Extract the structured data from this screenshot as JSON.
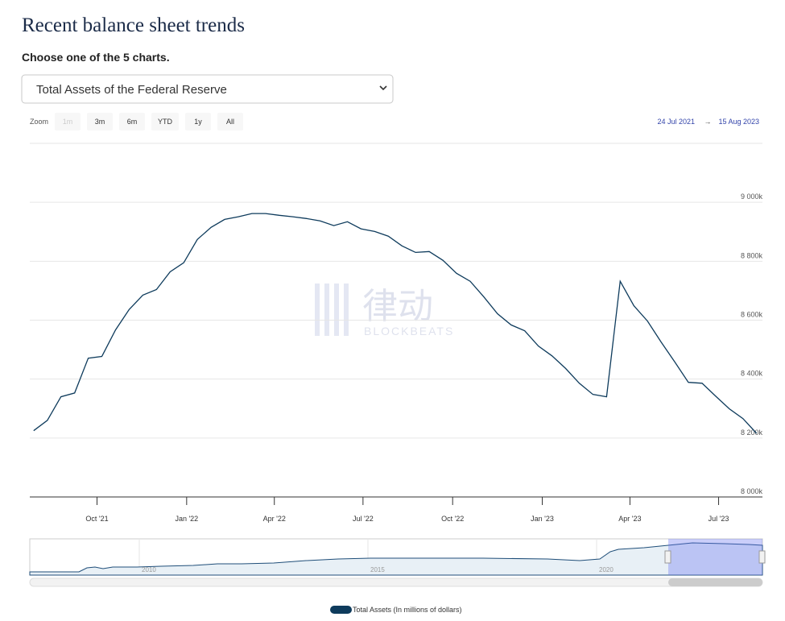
{
  "page": {
    "title": "Recent balance sheet trends",
    "subtitle": "Choose one of the 5 charts.",
    "select": "Total Assets of the Federal Reserve",
    "zoom_label": "Zoom",
    "zoom_buttons": [
      "1m",
      "3m",
      "6m",
      "YTD",
      "1y",
      "All"
    ],
    "range_from": "24 Jul 2021",
    "range_arrow": "→",
    "range_to": "15 Aug 2023",
    "navigator_years": [
      "2010",
      "2015",
      "2020"
    ],
    "watermark": [
      "律动",
      "BLOCKBEATS"
    ]
  },
  "chart_data": {
    "type": "line",
    "x": [
      "2021-07-28",
      "2021-08-11",
      "2021-08-25",
      "2021-09-08",
      "2021-09-22",
      "2021-10-06",
      "2021-10-20",
      "2021-11-03",
      "2021-11-17",
      "2021-12-01",
      "2021-12-15",
      "2021-12-29",
      "2022-01-12",
      "2022-01-26",
      "2022-02-09",
      "2022-02-23",
      "2022-03-09",
      "2022-03-23",
      "2022-04-06",
      "2022-04-20",
      "2022-05-04",
      "2022-05-18",
      "2022-06-01",
      "2022-06-15",
      "2022-06-29",
      "2022-07-13",
      "2022-07-27",
      "2022-08-10",
      "2022-08-24",
      "2022-09-07",
      "2022-09-21",
      "2022-10-05",
      "2022-10-19",
      "2022-11-02",
      "2022-11-16",
      "2022-11-30",
      "2022-12-14",
      "2022-12-28",
      "2023-01-11",
      "2023-01-25",
      "2023-02-08",
      "2023-02-22",
      "2023-03-08",
      "2023-03-22",
      "2023-04-05",
      "2023-04-19",
      "2023-05-03",
      "2023-05-17",
      "2023-05-31",
      "2023-06-14",
      "2023-06-28",
      "2023-07-12",
      "2023-07-26",
      "2023-08-09"
    ],
    "series": [
      {
        "name": "Total Assets (In millions of dollars)",
        "color": "#0e3b5c",
        "values": [
          8225000,
          8260000,
          8340000,
          8353000,
          8471000,
          8477000,
          8567000,
          8636000,
          8685000,
          8704000,
          8764000,
          8795000,
          8874000,
          8915000,
          8942000,
          8951000,
          8962000,
          8962000,
          8956000,
          8951000,
          8945000,
          8937000,
          8921000,
          8934000,
          8910000,
          8901000,
          8885000,
          8852000,
          8830000,
          8833000,
          8803000,
          8759000,
          8732000,
          8679000,
          8622000,
          8584000,
          8564000,
          8512000,
          8479000,
          8436000,
          8386000,
          8348000,
          8340000,
          8732000,
          8649000,
          8597000,
          8526000,
          8458000,
          8389000,
          8386000,
          8342000,
          8299000,
          8266000,
          8216000
        ]
      }
    ],
    "xlim": [
      "2021-07-24",
      "2023-08-15"
    ],
    "xticks": [
      {
        "value": "2021-10-01",
        "label": "Oct '21"
      },
      {
        "value": "2022-01-01",
        "label": "Jan '22"
      },
      {
        "value": "2022-04-01",
        "label": "Apr '22"
      },
      {
        "value": "2022-07-01",
        "label": "Jul '22"
      },
      {
        "value": "2022-10-01",
        "label": "Oct '22"
      },
      {
        "value": "2023-01-01",
        "label": "Jan '23"
      },
      {
        "value": "2023-04-01",
        "label": "Apr '23"
      },
      {
        "value": "2023-07-01",
        "label": "Jul '23"
      }
    ],
    "ylim": [
      8000000,
      9200000
    ],
    "yticks": [
      {
        "value": 8000000,
        "label": "8 000k"
      },
      {
        "value": 8200000,
        "label": "8 200k"
      },
      {
        "value": 8400000,
        "label": "8 400k"
      },
      {
        "value": 8600000,
        "label": "8 600k"
      },
      {
        "value": 8800000,
        "label": "8 800k"
      },
      {
        "value": 9000000,
        "label": "9 000k"
      }
    ],
    "grid": true
  }
}
